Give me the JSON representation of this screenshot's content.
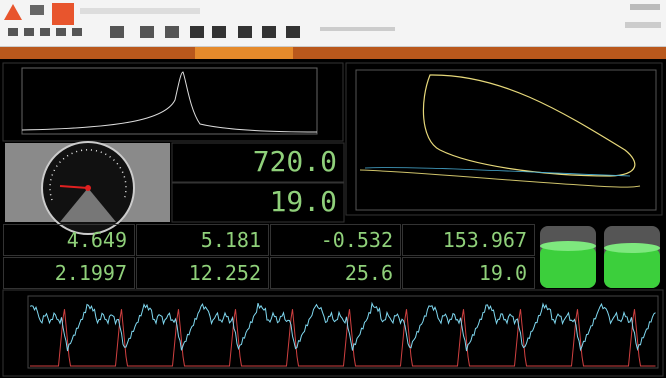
{
  "displays": {
    "top": "720.0",
    "bottom": "19.0"
  },
  "meters": [
    [
      "4.649",
      "5.181",
      "-0.532",
      "153.967"
    ],
    [
      "2.1997",
      "12.252",
      "25.6",
      "19.0"
    ]
  ]
}
